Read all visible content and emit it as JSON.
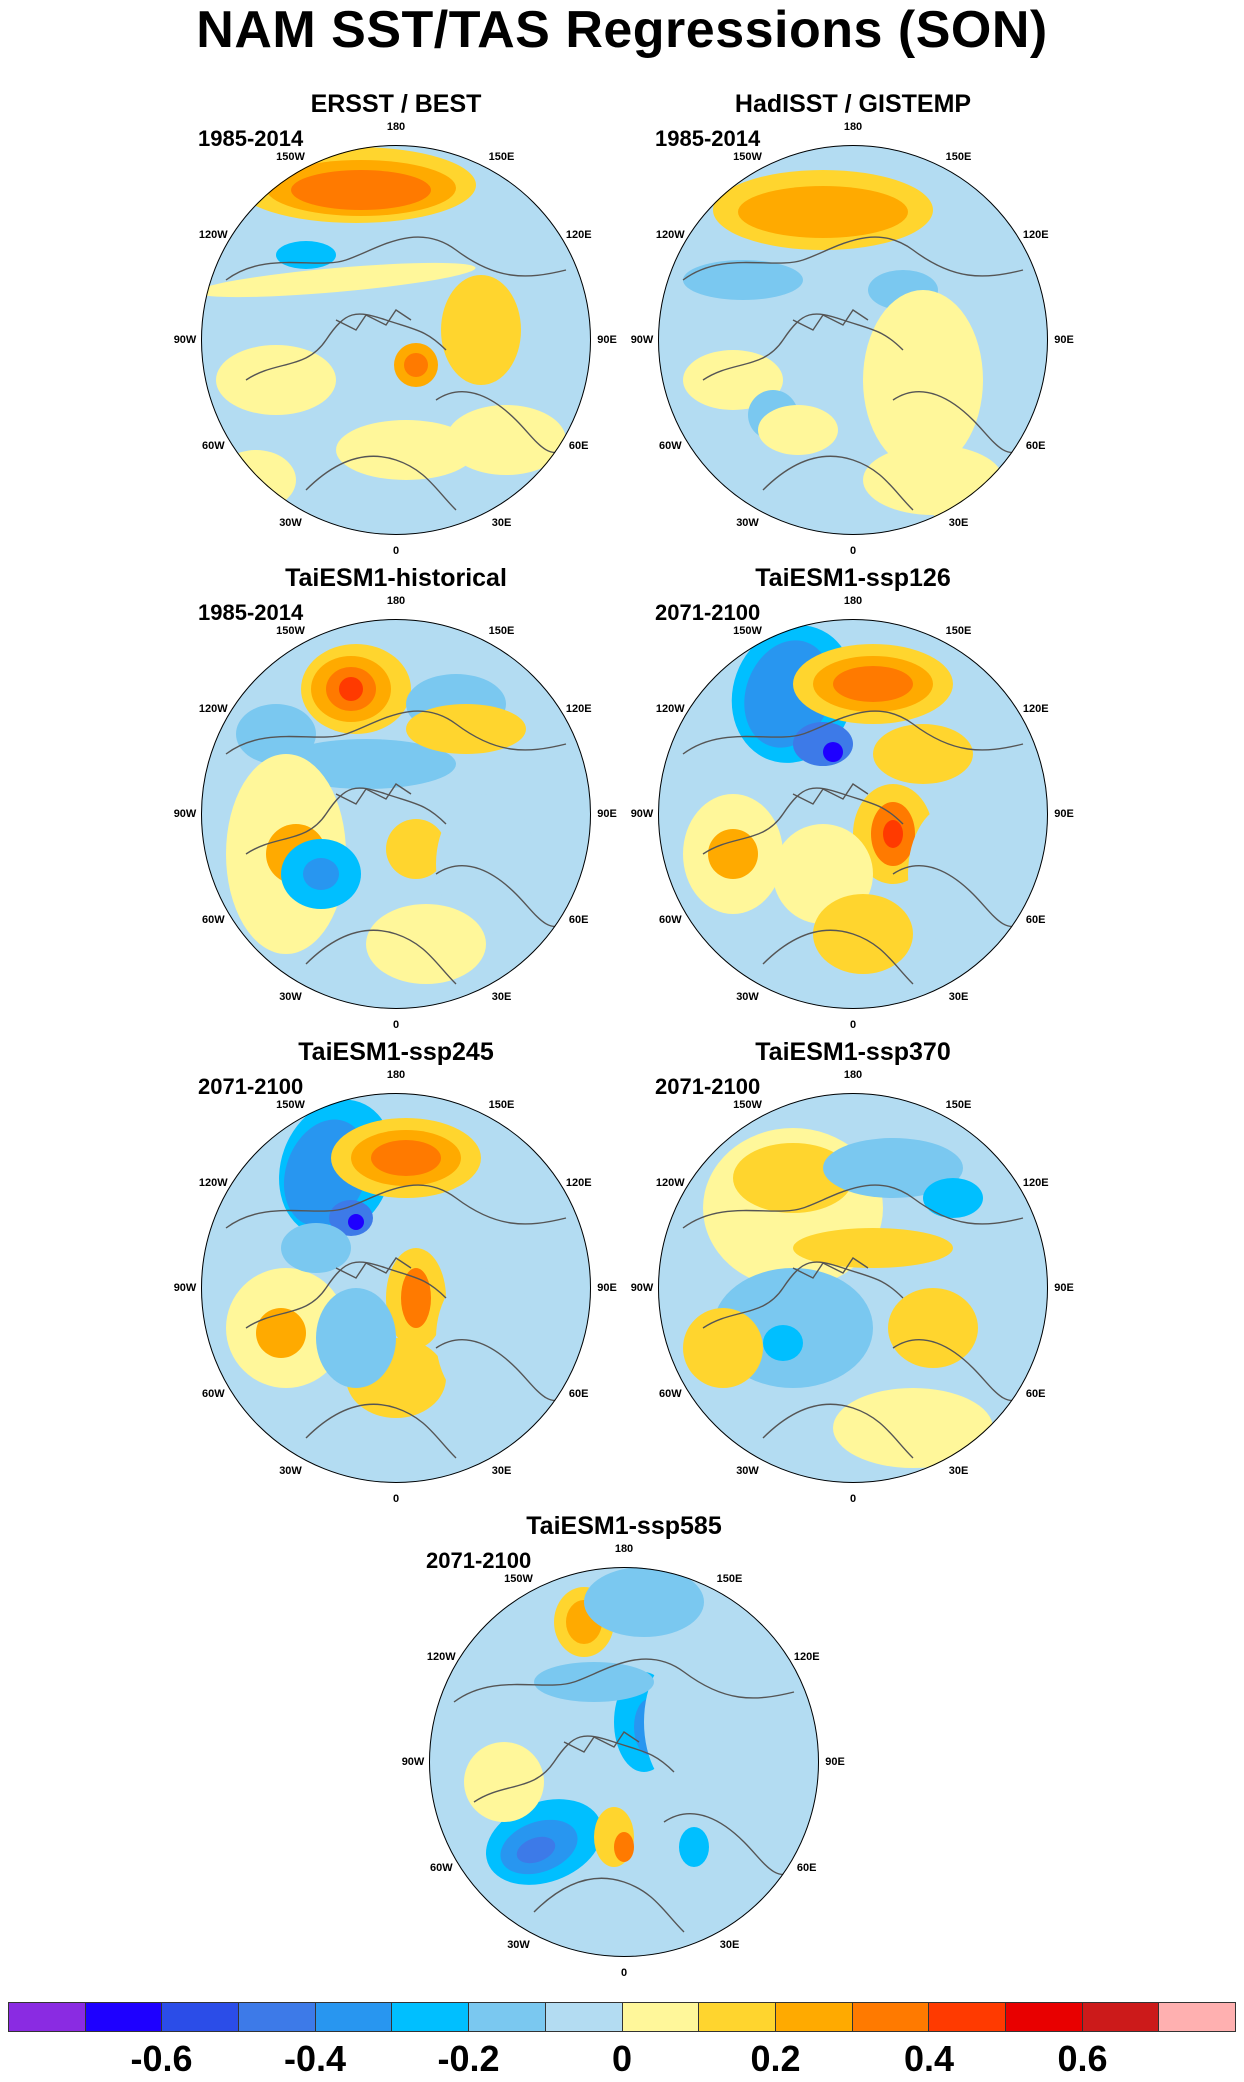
{
  "title": "NAM SST/TAS Regressions (SON)",
  "panels": [
    {
      "title": "ERSST / BEST",
      "period": "1985-2014"
    },
    {
      "title": "HadISST / GISTEMP",
      "period": "1985-2014"
    },
    {
      "title": "TaiESM1-historical",
      "period": "1985-2014"
    },
    {
      "title": "TaiESM1-ssp126",
      "period": "2071-2100"
    },
    {
      "title": "TaiESM1-ssp245",
      "period": "2071-2100"
    },
    {
      "title": "TaiESM1-ssp370",
      "period": "2071-2100"
    },
    {
      "title": "TaiESM1-ssp585",
      "period": "2071-2100"
    }
  ],
  "longitude_labels": [
    "180",
    "150E",
    "120E",
    "90E",
    "60E",
    "30E",
    "0",
    "30W",
    "60W",
    "90W",
    "120W",
    "150W"
  ],
  "colorbar": {
    "colors": [
      "#8a2be2",
      "#1e00ff",
      "#2b4de8",
      "#3d7ae8",
      "#2896f0",
      "#00bfff",
      "#7ac8f0",
      "#b3dcf2",
      "#fff79a",
      "#ffd52e",
      "#ffaa00",
      "#ff7a00",
      "#ff3a00",
      "#e80000",
      "#cc1a1a",
      "#ffb0b0"
    ],
    "tick_labels": [
      "-0.6",
      "-0.4",
      "-0.2",
      "0",
      "0.2",
      "0.4",
      "0.6"
    ]
  },
  "legend_colors": {
    "neutral_pos": "#fff79a",
    "neutral_neg": "#b3dcf2",
    "warm1": "#ffd52e",
    "warm2": "#ffaa00",
    "warm3": "#ff7a00",
    "warm4": "#ff3a00",
    "warm5": "#e80000",
    "cool1": "#7ac8f0",
    "cool2": "#00bfff",
    "cool3": "#2896f0",
    "cool4": "#3d7ae8",
    "cool5": "#1e00ff"
  }
}
